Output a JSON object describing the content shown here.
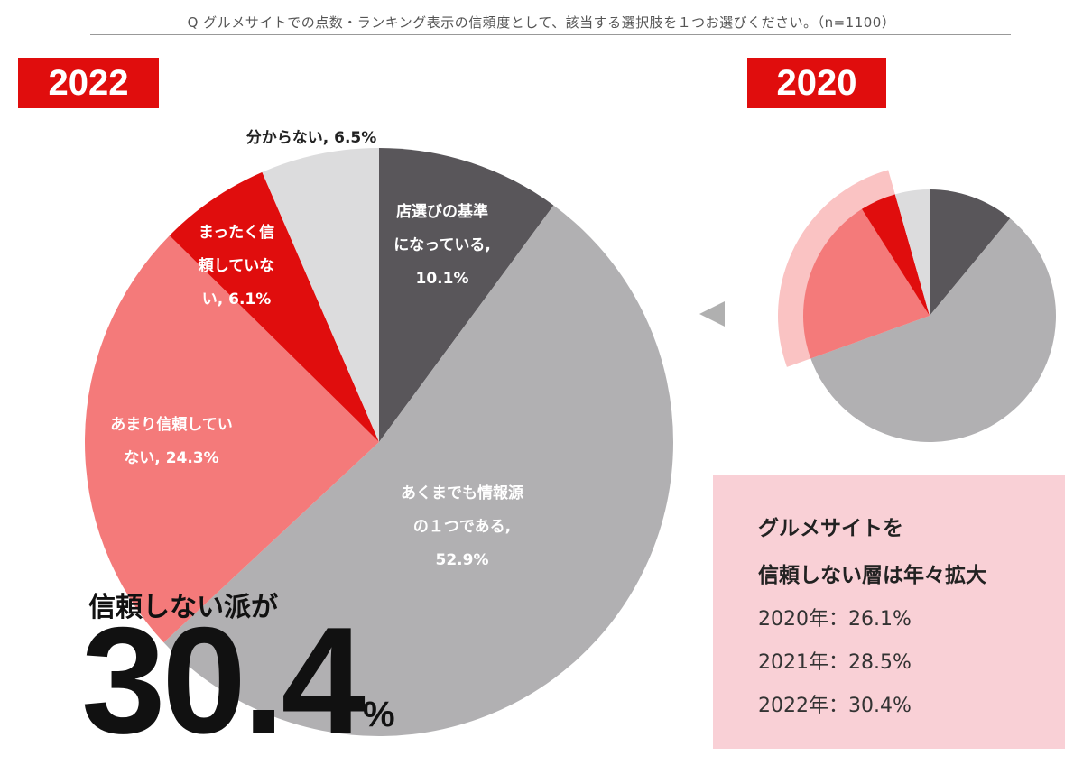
{
  "question": "Q グルメサイトでの点数・ランキング表示の信頼度として、該当する選択肢を１つお選びください。（n=1100）",
  "year_main": "2022",
  "year_small": "2020",
  "colors": {
    "accent_red": "#e00d0d",
    "dark_gray": "#59565a",
    "mid_gray": "#b1b0b2",
    "light_red": "#f47a7a",
    "red": "#e00d0d",
    "light_gray": "#dcdcdd",
    "pink_box": "#f9d0d6"
  },
  "chart_data": [
    {
      "type": "pie",
      "title": "2022",
      "slices": [
        {
          "label": "店選びの基準になっている",
          "value": 10.1,
          "color": "#59565a"
        },
        {
          "label": "あくまでも情報源の１つである",
          "value": 52.9,
          "color": "#b1b0b2"
        },
        {
          "label": "あまり信頼していない",
          "value": 24.3,
          "color": "#f47a7a"
        },
        {
          "label": "まったく信頼していない",
          "value": 6.1,
          "color": "#e00d0d"
        },
        {
          "label": "分からない",
          "value": 6.5,
          "color": "#dcdcdd"
        }
      ],
      "label_lines": [
        [
          "店選びの基準",
          "になっている,",
          "10.1%"
        ],
        [
          "あくまでも情報源",
          "の１つである,",
          "52.9%"
        ],
        [
          "あまり信頼してい",
          "ない, 24.3%"
        ],
        [
          "まったく信",
          "頼していな",
          "い, 6.1%"
        ],
        [
          "分からない, 6.5%"
        ]
      ]
    },
    {
      "type": "pie",
      "title": "2020",
      "slices": [
        {
          "value": 11.0,
          "color": "#59565a"
        },
        {
          "value": 58.5,
          "color": "#b1b0b2"
        },
        {
          "value": 21.5,
          "color": "#f47a7a"
        },
        {
          "value": 4.6,
          "color": "#e00d0d"
        },
        {
          "value": 4.4,
          "color": "#dcdcdd"
        }
      ]
    }
  ],
  "headline": "信頼しない派が",
  "big_value": "30.4",
  "big_unit": "%",
  "info": {
    "title_line1": "グルメサイトを",
    "title_line2": "信頼しない層は年々拡大",
    "rows": [
      "2020年：26.1%",
      "2021年：28.5%",
      "2022年：30.4%"
    ]
  }
}
